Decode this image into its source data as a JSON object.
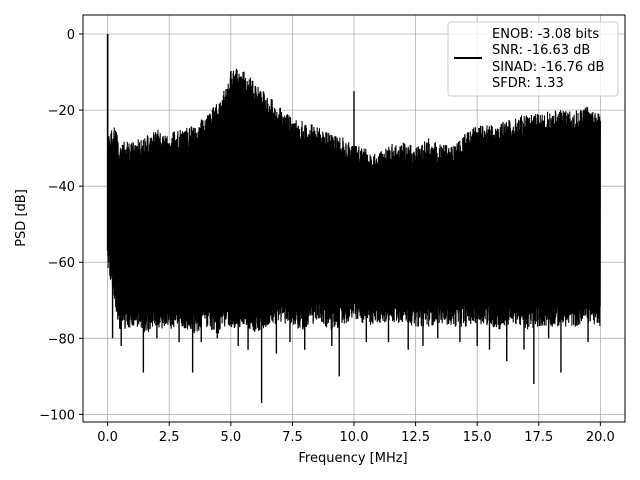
{
  "chart_data": {
    "type": "line",
    "xlabel": "Frequency [MHz]",
    "ylabel": "PSD [dB]",
    "xlim": [
      -1.0,
      21.0
    ],
    "ylim": [
      -102,
      5
    ],
    "xticks": [
      0.0,
      2.5,
      5.0,
      7.5,
      10.0,
      12.5,
      15.0,
      17.5,
      20.0
    ],
    "xtick_labels": [
      "0.0",
      "2.5",
      "5.0",
      "7.5",
      "10.0",
      "12.5",
      "15.0",
      "17.5",
      "20.0"
    ],
    "yticks": [
      0,
      -20,
      -40,
      -60,
      -80,
      -100
    ],
    "ytick_labels": [
      "0",
      "−20",
      "−40",
      "−60",
      "−80",
      "−100"
    ],
    "grid": true,
    "legend_position": "top-right",
    "series": [
      {
        "legend_lines": [
          "ENOB: -3.08 bits",
          "SNR: -16.63 dB",
          "SINAD: -16.76 dB",
          "SFDR: 1.33"
        ],
        "color": "#000000",
        "peak": {
          "x": 0.0,
          "y": 0.0
        },
        "spur": {
          "x": 10.0,
          "y": -15.0
        },
        "envelope": {
          "x": [
            0.0,
            0.25,
            0.5,
            1.0,
            1.5,
            2.0,
            2.5,
            3.0,
            3.5,
            4.0,
            4.5,
            4.9,
            5.0,
            5.5,
            6.0,
            6.5,
            7.0,
            7.5,
            8.0,
            8.5,
            9.0,
            9.5,
            10.0,
            10.5,
            11.0,
            11.5,
            12.0,
            12.5,
            13.0,
            13.5,
            14.0,
            14.5,
            15.0,
            15.5,
            16.0,
            16.5,
            17.0,
            17.5,
            18.0,
            18.5,
            19.0,
            19.5,
            20.0
          ],
          "top": [
            -30,
            -27,
            -31,
            -31,
            -30,
            -28,
            -29,
            -28,
            -27,
            -24,
            -20,
            -16,
            -12,
            -12,
            -16,
            -19,
            -22,
            -25,
            -26,
            -27,
            -29,
            -30,
            -32,
            -33,
            -34,
            -32,
            -31,
            -33,
            -30,
            -32,
            -32,
            -29,
            -27,
            -27,
            -26,
            -25,
            -24,
            -24,
            -23,
            -23,
            -23,
            -22,
            -24
          ],
          "bottom": [
            -58,
            -68,
            -75,
            -74,
            -76,
            -74,
            -75,
            -74,
            -76,
            -74,
            -76,
            -74,
            -75,
            -74,
            -76,
            -74,
            -73,
            -74,
            -75,
            -73,
            -75,
            -74,
            -72,
            -74,
            -73,
            -73,
            -73,
            -74,
            -74,
            -73,
            -74,
            -74,
            -73,
            -74,
            -75,
            -73,
            -75,
            -74,
            -74,
            -74,
            -74,
            -73,
            -74
          ]
        },
        "deep_nulls": [
          {
            "x": 0.2,
            "y": -66
          },
          {
            "x": 0.2,
            "y": -80
          },
          {
            "x": 0.55,
            "y": -82
          },
          {
            "x": 1.45,
            "y": -89
          },
          {
            "x": 2.0,
            "y": -80
          },
          {
            "x": 2.9,
            "y": -81
          },
          {
            "x": 3.45,
            "y": -89
          },
          {
            "x": 3.8,
            "y": -81
          },
          {
            "x": 4.45,
            "y": -80
          },
          {
            "x": 5.3,
            "y": -82
          },
          {
            "x": 5.7,
            "y": -83
          },
          {
            "x": 6.25,
            "y": -97
          },
          {
            "x": 6.85,
            "y": -84
          },
          {
            "x": 7.4,
            "y": -81
          },
          {
            "x": 8.0,
            "y": -83
          },
          {
            "x": 9.1,
            "y": -82
          },
          {
            "x": 9.4,
            "y": -90
          },
          {
            "x": 10.5,
            "y": -81
          },
          {
            "x": 11.4,
            "y": -81
          },
          {
            "x": 12.2,
            "y": -83
          },
          {
            "x": 12.8,
            "y": -82
          },
          {
            "x": 13.4,
            "y": -80
          },
          {
            "x": 14.3,
            "y": -81
          },
          {
            "x": 15.0,
            "y": -82
          },
          {
            "x": 15.5,
            "y": -83
          },
          {
            "x": 16.2,
            "y": -86
          },
          {
            "x": 16.9,
            "y": -83
          },
          {
            "x": 17.3,
            "y": -92
          },
          {
            "x": 17.9,
            "y": -80
          },
          {
            "x": 18.4,
            "y": -89
          },
          {
            "x": 19.5,
            "y": -81
          },
          {
            "x": 19.9,
            "y": -76
          }
        ]
      }
    ]
  }
}
